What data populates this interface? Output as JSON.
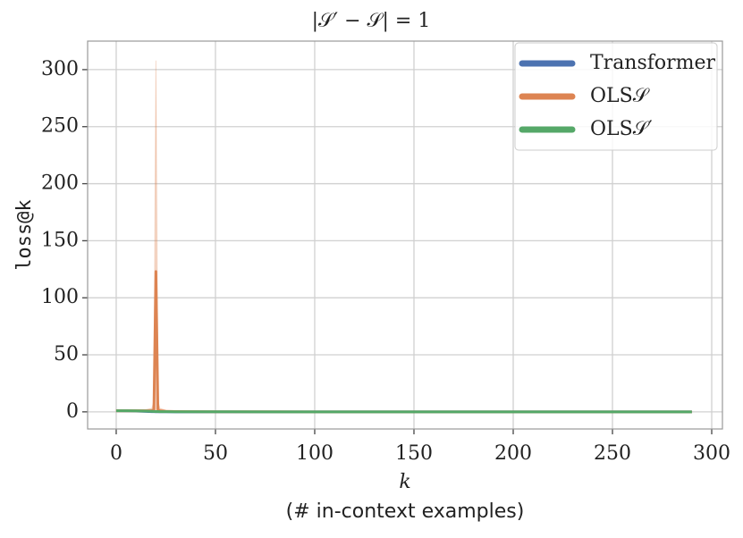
{
  "chart_data": {
    "type": "line",
    "title": "|𝒮′ − 𝒮| = 1",
    "x_label": "k",
    "x_sublabel": "(# in-context examples)",
    "y_label": "loss@k",
    "x": [
      0,
      5,
      10,
      15,
      18,
      19,
      20,
      21,
      22,
      25,
      30,
      40,
      50,
      75,
      100,
      125,
      150,
      175,
      200,
      225,
      250,
      275,
      290
    ],
    "series": [
      {
        "name": "Transformer",
        "color": "#4c72b0",
        "values": [
          1.0,
          0.9,
          0.7,
          0.4,
          0.2,
          0.15,
          0.1,
          0.08,
          0.06,
          0.04,
          0.03,
          0.02,
          0.01,
          0.01,
          0.01,
          0.01,
          0.01,
          0.01,
          0.01,
          0.01,
          0.01,
          0.01,
          0.01
        ]
      },
      {
        "name": "OLS𝒮",
        "color": "#dd8452",
        "values": [
          1,
          1,
          1,
          1,
          1,
          2,
          123,
          2,
          1,
          0.5,
          0.3,
          0.2,
          0.1,
          0.05,
          0.03,
          0.02,
          0.02,
          0.01,
          0.01,
          0.01,
          0.01,
          0.01,
          0.01
        ],
        "lower": [
          0,
          0,
          0,
          0,
          0,
          0,
          0,
          0,
          0,
          0,
          0,
          0,
          0,
          0,
          0,
          0,
          0,
          0,
          0,
          0,
          0,
          0,
          0
        ],
        "upper": [
          2,
          2,
          2,
          2,
          3,
          10,
          308,
          10,
          3,
          1.5,
          0.8,
          0.5,
          0.3,
          0.1,
          0.06,
          0.04,
          0.04,
          0.02,
          0.02,
          0.02,
          0.02,
          0.02,
          0.02
        ]
      },
      {
        "name": "OLS𝒮′",
        "color": "#55a868",
        "values": [
          1,
          1,
          0.9,
          0.7,
          0.5,
          0.4,
          0.3,
          0.25,
          0.2,
          0.15,
          0.1,
          0.08,
          0.05,
          0.03,
          0.02,
          0.02,
          0.01,
          0.01,
          0.01,
          0.01,
          0.01,
          0.01,
          0.01
        ]
      }
    ],
    "xlim": [
      -14.4,
      305.4
    ],
    "ylim": [
      -15,
      325
    ],
    "xticks": [
      0,
      50,
      100,
      150,
      200,
      250,
      300
    ],
    "yticks": [
      0,
      50,
      100,
      150,
      200,
      250,
      300
    ],
    "grid": true,
    "legend": "upper right"
  }
}
